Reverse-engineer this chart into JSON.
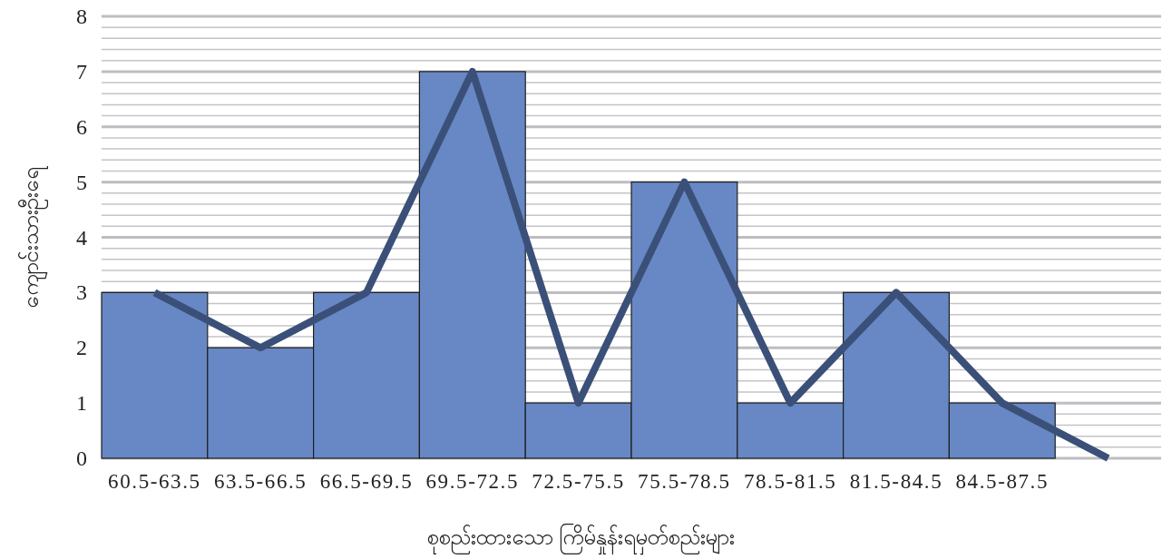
{
  "chart_data": {
    "type": "bar",
    "xlabel": "စုစည်းထားသော ကြိမ်နှုန်းရမှတ်စည်းများ",
    "ylabel": "ကျောင်းသားဦးရေ",
    "categories": [
      "60.5-63.5",
      "63.5-66.5",
      "66.5-69.5",
      "69.5-72.5",
      "72.5-75.5",
      "75.5-78.5",
      "78.5-81.5",
      "81.5-84.5",
      "84.5-87.5",
      null
    ],
    "series": [
      {
        "color": "#6788c5",
        "values": [
          3,
          2,
          3,
          7,
          1,
          5,
          1,
          3,
          1,
          null
        ]
      },
      {
        "type": "line",
        "color": "#3b5078",
        "values": [
          3,
          2,
          3,
          7,
          1,
          5,
          1,
          3,
          1,
          0
        ]
      }
    ],
    "ylim": [
      0,
      8
    ],
    "yticks": [
      0,
      1,
      2,
      3,
      4,
      5,
      6,
      7,
      8
    ],
    "grid": "y"
  }
}
